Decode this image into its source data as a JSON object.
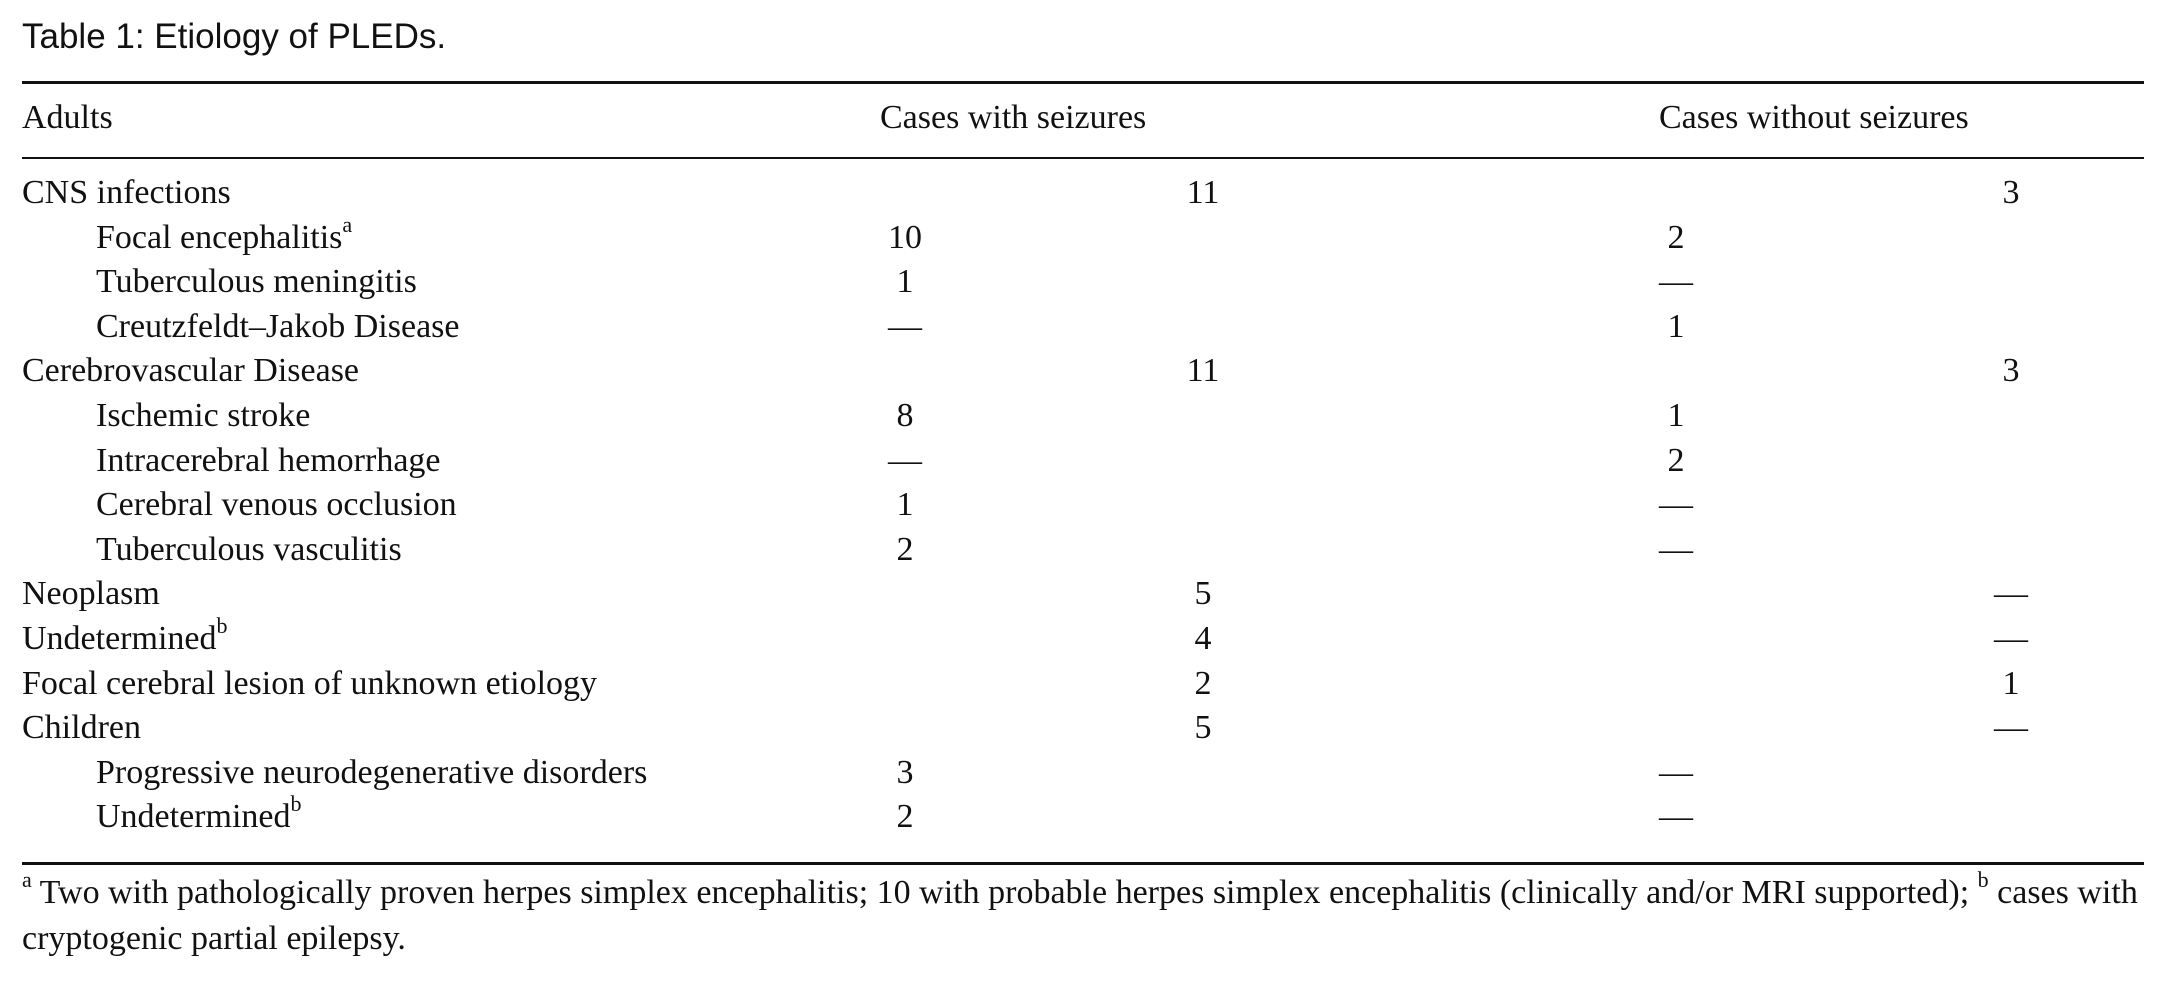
{
  "caption": "Table 1: Etiology of PLEDs.",
  "headers": {
    "col1": "Adults",
    "col2": "Cases with seizures",
    "col3": "Cases without seizures"
  },
  "rows": [
    {
      "label": "CNS infections",
      "sup": "",
      "indent": false,
      "with_sub": "",
      "with_total": "11",
      "without_sub": "",
      "without_total": "3"
    },
    {
      "label": "Focal encephalitis",
      "sup": "a",
      "indent": true,
      "with_sub": "10",
      "with_total": "",
      "without_sub": "2",
      "without_total": ""
    },
    {
      "label": "Tuberculous meningitis",
      "sup": "",
      "indent": true,
      "with_sub": "1",
      "with_total": "",
      "without_sub": "—",
      "without_total": ""
    },
    {
      "label": "Creutzfeldt–Jakob Disease",
      "sup": "",
      "indent": true,
      "with_sub": "—",
      "with_total": "",
      "without_sub": "1",
      "without_total": ""
    },
    {
      "label": "Cerebrovascular Disease",
      "sup": "",
      "indent": false,
      "with_sub": "",
      "with_total": "11",
      "without_sub": "",
      "without_total": "3"
    },
    {
      "label": "Ischemic stroke",
      "sup": "",
      "indent": true,
      "with_sub": "8",
      "with_total": "",
      "without_sub": "1",
      "without_total": ""
    },
    {
      "label": "Intracerebral hemorrhage",
      "sup": "",
      "indent": true,
      "with_sub": "—",
      "with_total": "",
      "without_sub": "2",
      "without_total": ""
    },
    {
      "label": "Cerebral venous occlusion",
      "sup": "",
      "indent": true,
      "with_sub": "1",
      "with_total": "",
      "without_sub": "—",
      "without_total": ""
    },
    {
      "label": "Tuberculous vasculitis",
      "sup": "",
      "indent": true,
      "with_sub": "2",
      "with_total": "",
      "without_sub": "—",
      "without_total": ""
    },
    {
      "label": "Neoplasm",
      "sup": "",
      "indent": false,
      "with_sub": "",
      "with_total": "5",
      "without_sub": "",
      "without_total": "—"
    },
    {
      "label": "Undetermined",
      "sup": "b",
      "indent": false,
      "with_sub": "",
      "with_total": "4",
      "without_sub": "",
      "without_total": "—"
    },
    {
      "label": "Focal cerebral lesion of unknown etiology",
      "sup": "",
      "indent": false,
      "with_sub": "",
      "with_total": "2",
      "without_sub": "",
      "without_total": "1"
    },
    {
      "label": "Children",
      "sup": "",
      "indent": false,
      "with_sub": "",
      "with_total": "5",
      "without_sub": "",
      "without_total": "—"
    },
    {
      "label": "Progressive neurodegenerative disorders",
      "sup": "",
      "indent": true,
      "with_sub": "3",
      "with_total": "",
      "without_sub": "—",
      "without_total": ""
    },
    {
      "label": "Undetermined",
      "sup": "b",
      "indent": true,
      "with_sub": "2",
      "with_total": "",
      "without_sub": "—",
      "without_total": ""
    }
  ],
  "footnote": {
    "mark_a": "a",
    "text_a": " Two with pathologically proven herpes simplex encephalitis; 10 with probable herpes simplex encephalitis (clinically and/or MRI supported); ",
    "mark_b": "b",
    "text_b": " cases with cryptogenic partial epilepsy."
  }
}
